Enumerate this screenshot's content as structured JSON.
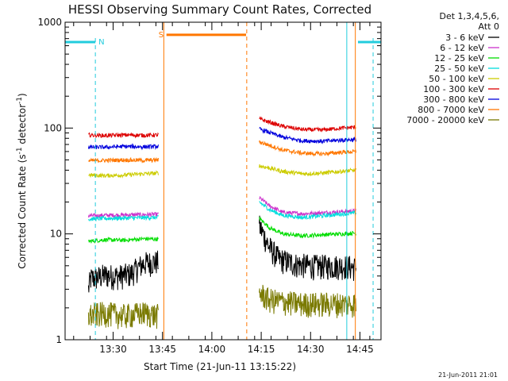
{
  "chart_data": {
    "type": "line",
    "title": "HESSI Observing Summary Count Rates, Corrected",
    "xlabel": "Start Time (21-Jun-11 13:15:22)",
    "ylabel": "Corrected Count Rate (s",
    "ylabel_sup1": "-1",
    "ylabel_mid": " detector",
    "ylabel_sup2": "-1",
    "ylabel_end": ")",
    "y_scale": "log",
    "ylim": [
      1,
      1000
    ],
    "xlim_minutes": [
      0,
      96
    ],
    "x_ticks": [
      {
        "min": 14.6,
        "label": "13:30"
      },
      {
        "min": 29.6,
        "label": "13:45"
      },
      {
        "min": 44.6,
        "label": "14:00"
      },
      {
        "min": 59.6,
        "label": "14:15"
      },
      {
        "min": 74.6,
        "label": "14:30"
      },
      {
        "min": 89.6,
        "label": "14:45"
      }
    ],
    "y_ticks": [
      {
        "v": 1,
        "label": "1"
      },
      {
        "v": 10,
        "label": "10"
      },
      {
        "v": 100,
        "label": "100"
      },
      {
        "v": 1000,
        "label": "1000"
      }
    ],
    "legend_header": [
      "Det 1,3,4,5,6,",
      "Att 0"
    ],
    "series": [
      {
        "name": "3 - 6 keV",
        "color": "#000000",
        "seg1": [
          [
            7.1,
            3.0
          ],
          [
            7.8,
            3.8
          ],
          [
            10,
            3.9
          ],
          [
            12,
            4.1
          ],
          [
            16,
            4.0
          ],
          [
            20,
            4.2
          ],
          [
            24,
            5.3
          ],
          [
            28.4,
            5.5
          ]
        ],
        "seg2": [
          [
            59.0,
            12.0
          ],
          [
            60.5,
            9.5
          ],
          [
            62,
            7.5
          ],
          [
            65,
            5.8
          ],
          [
            70,
            5.2
          ],
          [
            75,
            5.0
          ],
          [
            80,
            5.0
          ],
          [
            85,
            5.0
          ],
          [
            88.5,
            4.8
          ]
        ]
      },
      {
        "name": "6 - 12 keV",
        "color": "#cc33cc",
        "seg1": [
          [
            7.1,
            14.8
          ],
          [
            12,
            15.0
          ],
          [
            18,
            15.1
          ],
          [
            24,
            15.2
          ],
          [
            28.4,
            15.3
          ]
        ],
        "seg2": [
          [
            59.0,
            22.0
          ],
          [
            62,
            18.5
          ],
          [
            66,
            16.0
          ],
          [
            72,
            15.5
          ],
          [
            78,
            15.8
          ],
          [
            84,
            16.2
          ],
          [
            88.5,
            16.5
          ]
        ]
      },
      {
        "name": "12 - 25 keV",
        "color": "#00dd00",
        "seg1": [
          [
            7.1,
            8.5
          ],
          [
            12,
            8.8
          ],
          [
            18,
            8.7
          ],
          [
            24,
            9.0
          ],
          [
            28.4,
            8.9
          ]
        ],
        "seg2": [
          [
            59.0,
            14.0
          ],
          [
            62,
            11.5
          ],
          [
            66,
            10.0
          ],
          [
            72,
            9.6
          ],
          [
            78,
            9.8
          ],
          [
            84,
            10.0
          ],
          [
            88.5,
            10.2
          ]
        ]
      },
      {
        "name": "25 - 50 keV",
        "color": "#00dddd",
        "seg1": [
          [
            7.1,
            13.8
          ],
          [
            12,
            14.0
          ],
          [
            18,
            14.1
          ],
          [
            24,
            14.2
          ],
          [
            28.4,
            14.3
          ]
        ],
        "seg2": [
          [
            59.0,
            20.0
          ],
          [
            62,
            17.0
          ],
          [
            66,
            15.0
          ],
          [
            72,
            14.3
          ],
          [
            78,
            14.8
          ],
          [
            84,
            15.4
          ],
          [
            88.5,
            15.8
          ]
        ]
      },
      {
        "name": "50 - 100 keV",
        "color": "#cccc00",
        "seg1": [
          [
            7.1,
            36.0
          ],
          [
            12,
            35.5
          ],
          [
            18,
            36.0
          ],
          [
            24,
            37.0
          ],
          [
            28.4,
            37.5
          ]
        ],
        "seg2": [
          [
            59.0,
            44.0
          ],
          [
            62,
            42.0
          ],
          [
            66,
            39.0
          ],
          [
            72,
            37.0
          ],
          [
            78,
            37.5
          ],
          [
            84,
            39.0
          ],
          [
            88.5,
            40.0
          ]
        ]
      },
      {
        "name": "100 - 300 keV",
        "color": "#dd0000",
        "seg1": [
          [
            7.1,
            86.0
          ],
          [
            12,
            85.0
          ],
          [
            18,
            86.0
          ],
          [
            24,
            85.5
          ],
          [
            28.4,
            86.0
          ]
        ],
        "seg2": [
          [
            59.0,
            122.0
          ],
          [
            62,
            114.0
          ],
          [
            66,
            104.0
          ],
          [
            72,
            97.0
          ],
          [
            78,
            96.0
          ],
          [
            84,
            100.0
          ],
          [
            88.5,
            102.0
          ]
        ]
      },
      {
        "name": "300 - 800 keV",
        "color": "#0000dd",
        "seg1": [
          [
            7.1,
            66.0
          ],
          [
            12,
            66.0
          ],
          [
            18,
            67.0
          ],
          [
            24,
            66.5
          ],
          [
            28.4,
            67.0
          ]
        ],
        "seg2": [
          [
            59.0,
            98.0
          ],
          [
            62,
            91.0
          ],
          [
            66,
            82.0
          ],
          [
            72,
            76.0
          ],
          [
            78,
            75.0
          ],
          [
            84,
            77.0
          ],
          [
            88.5,
            78.0
          ]
        ]
      },
      {
        "name": "800 - 7000 keV",
        "color": "#ff7700",
        "seg1": [
          [
            7.1,
            49.0
          ],
          [
            12,
            49.5
          ],
          [
            18,
            50.0
          ],
          [
            24,
            49.5
          ],
          [
            28.4,
            50.0
          ]
        ],
        "seg2": [
          [
            59.0,
            74.0
          ],
          [
            62,
            69.0
          ],
          [
            66,
            62.0
          ],
          [
            72,
            58.0
          ],
          [
            78,
            57.0
          ],
          [
            84,
            59.0
          ],
          [
            88.5,
            60.0
          ]
        ]
      },
      {
        "name": "7000 - 20000 keV",
        "color": "#7a7a00",
        "seg1": [
          [
            7.1,
            1.7
          ],
          [
            12,
            1.8
          ],
          [
            18,
            1.7
          ],
          [
            24,
            1.8
          ],
          [
            28.4,
            1.7
          ]
        ],
        "seg2": [
          [
            59.0,
            2.8
          ],
          [
            62,
            2.4
          ],
          [
            66,
            2.3
          ],
          [
            72,
            2.2
          ],
          [
            78,
            2.2
          ],
          [
            84,
            2.2
          ],
          [
            88.5,
            2.2
          ]
        ]
      }
    ],
    "flags": [
      {
        "name": "N",
        "color": "#22ccdd",
        "start": 0,
        "end": 9.2,
        "level": 650,
        "label": "N"
      },
      {
        "name": "N",
        "color": "#22ccdd",
        "start": 89.0,
        "end": 96,
        "level": 650,
        "label": ""
      },
      {
        "name": "S",
        "color": "#ff7700",
        "start": 30.8,
        "end": 55.0,
        "level": 760,
        "label": "S"
      }
    ],
    "orange_solid": [
      30.0,
      88.2
    ],
    "orange_dashed": [
      55.2
    ],
    "cyan_solid": [
      85.6
    ],
    "cyan_dashed": [
      9.2,
      93.6
    ]
  },
  "footer": {
    "timestamp": "21-Jun-2011 21:01"
  }
}
